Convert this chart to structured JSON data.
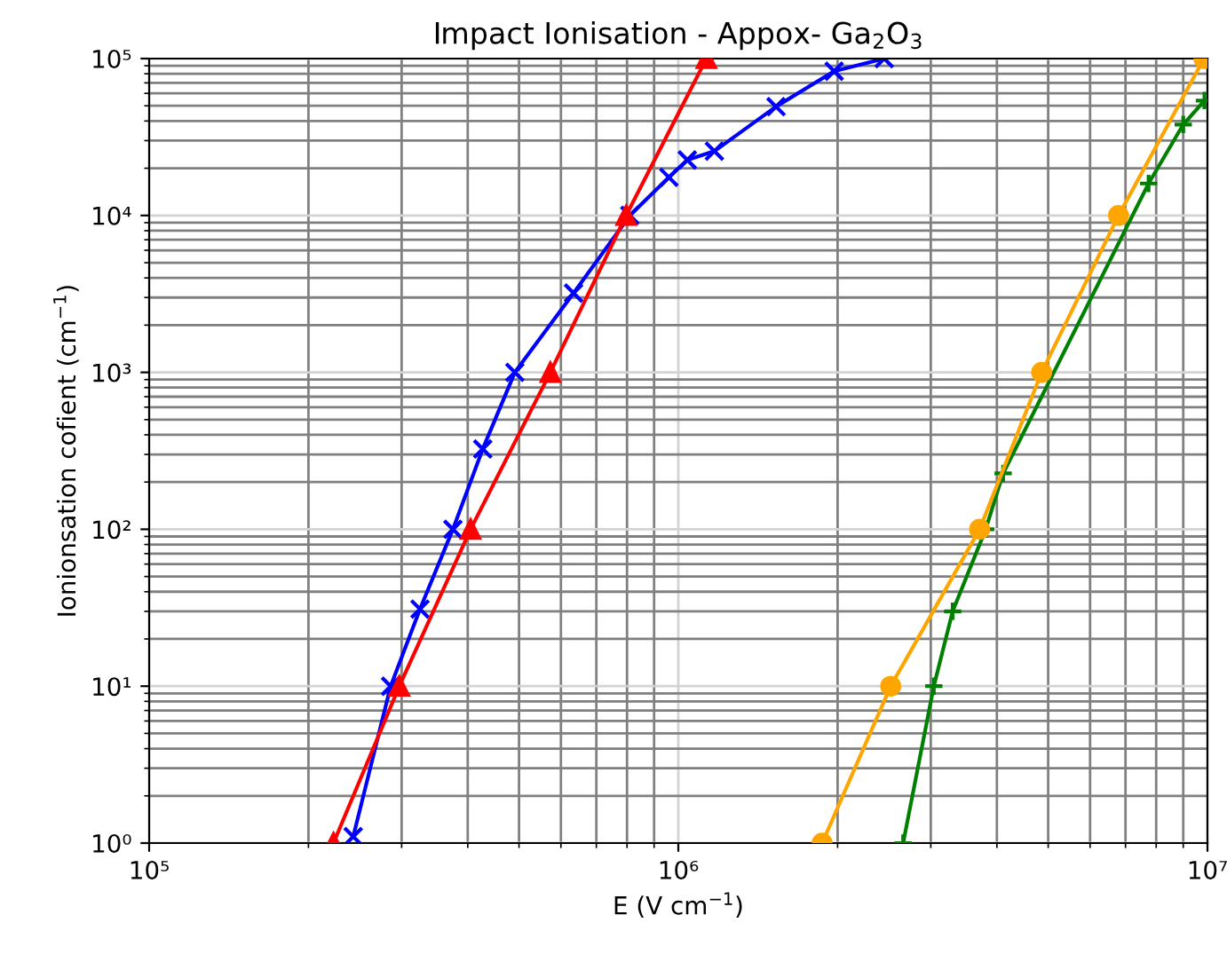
{
  "chart_data": {
    "type": "line",
    "title": "Impact Ionisation - Appox- Ga$_{2}$O$_{3}$",
    "xlabel": "E (V cm$^{−1}$)",
    "ylabel": "Ionionsation cofient (cm$^{−1}$)",
    "log": "xy",
    "grid": true,
    "xlim": [
      100000,
      10000000
    ],
    "ylim": [
      1,
      100000
    ],
    "xticks": [
      {
        "value": 100000,
        "label": "10⁵"
      },
      {
        "value": 1000000,
        "label": "10⁶"
      },
      {
        "value": 10000000,
        "label": "10⁷"
      }
    ],
    "yticks": [
      {
        "value": 1,
        "label": "10⁰"
      },
      {
        "value": 10,
        "label": "10¹"
      },
      {
        "value": 100,
        "label": "10²"
      },
      {
        "value": 1000,
        "label": "10³"
      },
      {
        "value": 10000,
        "label": "10⁴"
      },
      {
        "value": 100000,
        "label": "10⁵"
      }
    ],
    "series": [
      {
        "color": "#0000ff",
        "marker": "cross",
        "x": [
          243000,
          286000,
          325000,
          375000,
          427000,
          491000,
          634000,
          810000,
          960000,
          1040000,
          1170000,
          1530000,
          1970000,
          2450000
        ],
        "values": [
          1.1,
          10,
          31,
          100,
          325,
          1000,
          3200,
          10000,
          17500,
          22600,
          25700,
          49400,
          83000,
          100000
        ]
      },
      {
        "color": "#ff0000",
        "marker": "triangle",
        "x": [
          223000,
          297000,
          405000,
          573000,
          797000,
          1130000
        ],
        "values": [
          1,
          10,
          100,
          1000,
          10000,
          100000
        ]
      },
      {
        "color": "#008000",
        "marker": "plus",
        "x": [
          2660000,
          3040000,
          3300000,
          3810000,
          4110000,
          7740000,
          9000000,
          9870000
        ],
        "values": [
          1,
          10,
          30,
          100,
          227,
          16000,
          38000,
          54000
        ]
      },
      {
        "color": "#ffa500",
        "marker": "circle",
        "x": [
          1870000,
          2520000,
          3710000,
          4860000,
          6790000,
          9850000
        ],
        "values": [
          1,
          10,
          100,
          1000,
          10000,
          100000
        ]
      }
    ]
  }
}
